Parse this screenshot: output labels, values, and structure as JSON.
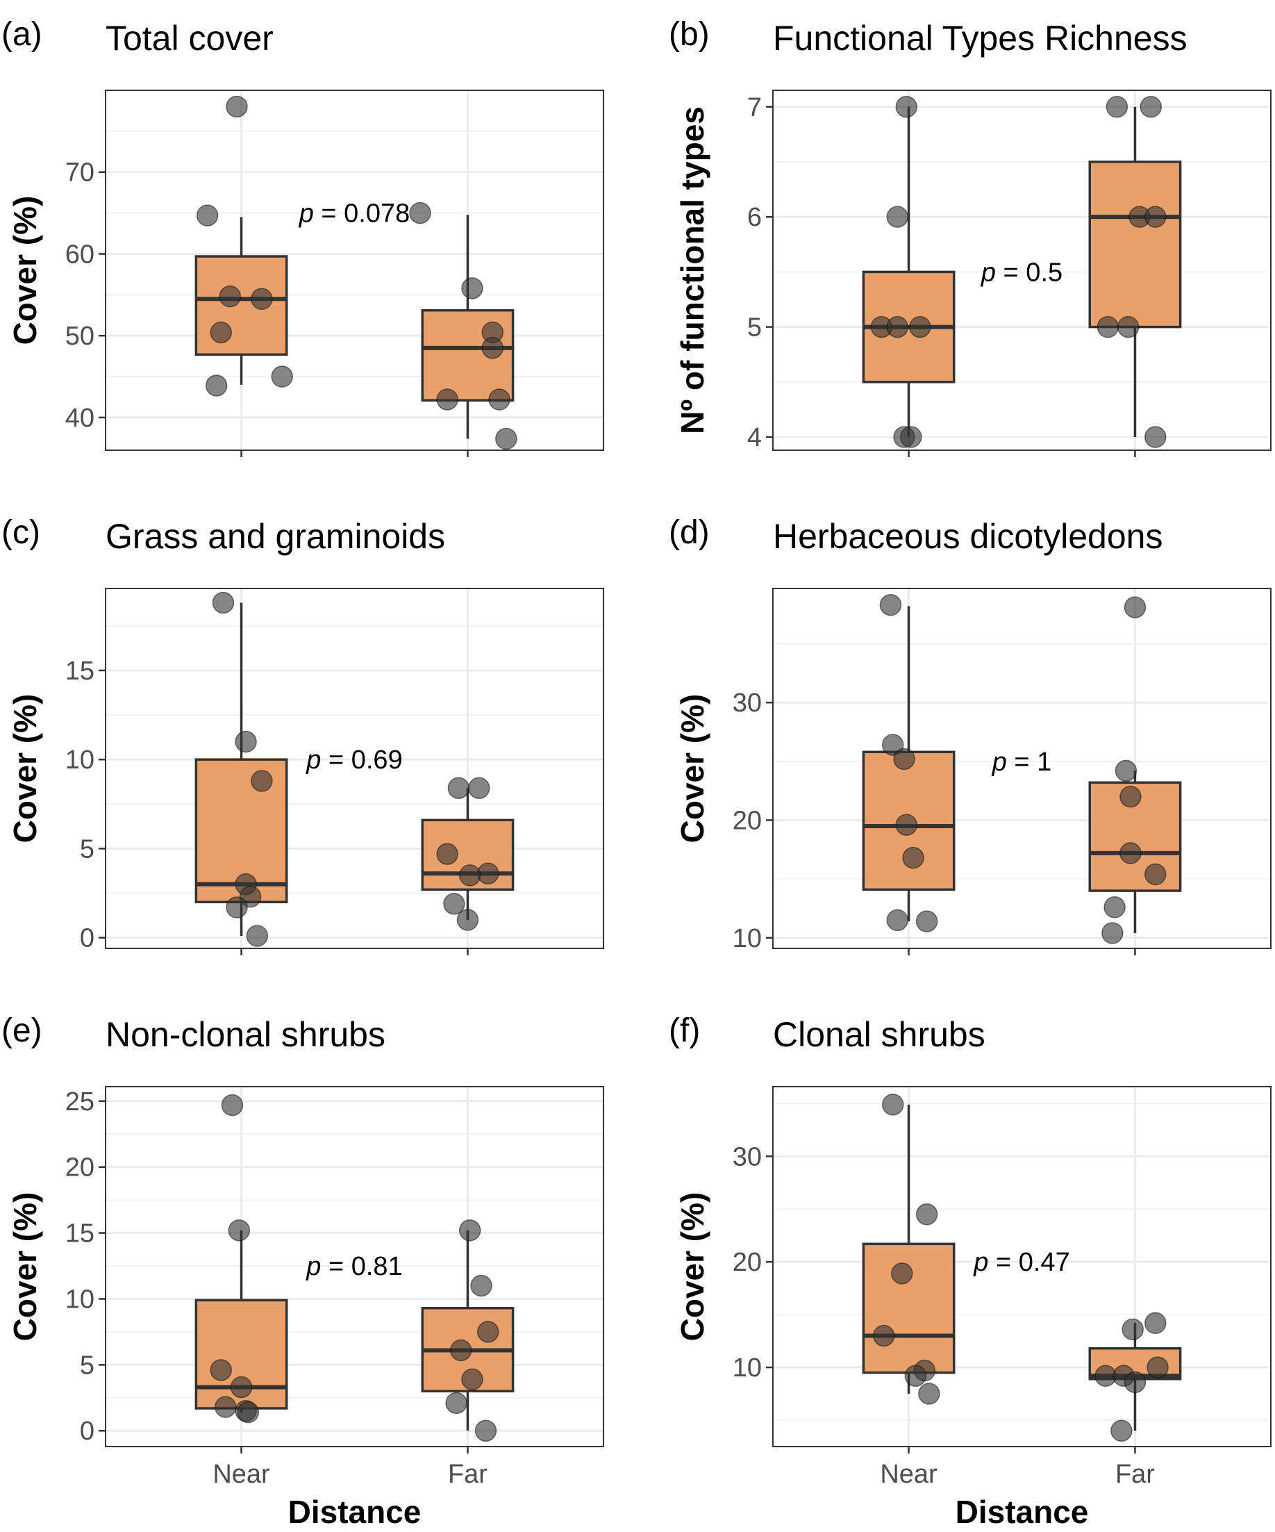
{
  "chart_data": [
    {
      "type": "box",
      "letter": "(a)",
      "title": "Total cover",
      "ylabel": "Cover (%)",
      "xlabel": "",
      "ylim": [
        36,
        80
      ],
      "yticks": [
        40,
        50,
        60,
        70
      ],
      "categories": [
        "Near",
        "Far"
      ],
      "boxes": [
        {
          "category": "Near",
          "q1": 47.7,
          "median": 54.5,
          "q3": 59.7,
          "whisker_low": 44,
          "whisker_high": 64.5,
          "points": [
            {
              "v": 78.0,
              "j": -0.02
            },
            {
              "v": 64.7,
              "j": -0.15
            },
            {
              "v": 54.8,
              "j": -0.05
            },
            {
              "v": 54.5,
              "j": 0.09
            },
            {
              "v": 50.4,
              "j": -0.09
            },
            {
              "v": 45.0,
              "j": 0.18
            },
            {
              "v": 43.9,
              "j": -0.11
            }
          ]
        },
        {
          "category": "Far",
          "q1": 42.1,
          "median": 48.5,
          "q3": 53.1,
          "whisker_low": 37.4,
          "whisker_high": 64.8,
          "points": [
            {
              "v": 65.0,
              "j": -0.21
            },
            {
              "v": 55.8,
              "j": 0.02
            },
            {
              "v": 50.4,
              "j": 0.11
            },
            {
              "v": 48.5,
              "j": 0.11
            },
            {
              "v": 42.2,
              "j": -0.09
            },
            {
              "v": 42.2,
              "j": 0.14
            },
            {
              "v": 37.4,
              "j": 0.17
            }
          ]
        }
      ],
      "p_value": {
        "prefix": "p",
        "text": " = 0.078",
        "x": 0.5,
        "y": 65
      }
    },
    {
      "type": "box",
      "letter": "(b)",
      "title": "Functional Types Richness",
      "ylabel": "Nº of functional types",
      "xlabel": "",
      "ylim": [
        3.88,
        7.15
      ],
      "yticks": [
        4,
        5,
        6,
        7
      ],
      "categories": [
        "Near",
        "Far"
      ],
      "boxes": [
        {
          "category": "Near",
          "q1": 4.5,
          "median": 5.0,
          "q3": 5.5,
          "whisker_low": 4,
          "whisker_high": 7,
          "points": [
            {
              "v": 7,
              "j": -0.01
            },
            {
              "v": 6,
              "j": -0.05
            },
            {
              "v": 5,
              "j": -0.12
            },
            {
              "v": 5,
              "j": -0.05
            },
            {
              "v": 5,
              "j": 0.05
            },
            {
              "v": 4,
              "j": -0.02
            },
            {
              "v": 4,
              "j": 0.01
            }
          ]
        },
        {
          "category": "Far",
          "q1": 5.0,
          "median": 6.0,
          "q3": 6.5,
          "whisker_low": 4,
          "whisker_high": 7,
          "points": [
            {
              "v": 7,
              "j": -0.08
            },
            {
              "v": 7,
              "j": 0.07
            },
            {
              "v": 6,
              "j": 0.02
            },
            {
              "v": 6,
              "j": 0.09
            },
            {
              "v": 5,
              "j": -0.12
            },
            {
              "v": 5,
              "j": -0.03
            },
            {
              "v": 4,
              "j": 0.09
            }
          ]
        }
      ],
      "p_value": {
        "prefix": "p",
        "text": " = 0.5",
        "x": 0.5,
        "y": 5.5
      }
    },
    {
      "type": "box",
      "letter": "(c)",
      "title": "Grass and graminoids",
      "ylabel": "Cover (%)",
      "xlabel": "",
      "ylim": [
        -0.6,
        19.6
      ],
      "yticks": [
        0,
        5,
        10,
        15
      ],
      "categories": [
        "Near",
        "Far"
      ],
      "boxes": [
        {
          "category": "Near",
          "q1": 2.0,
          "median": 3.0,
          "q3": 10.0,
          "whisker_low": 0.1,
          "whisker_high": 18.8,
          "points": [
            {
              "v": 18.8,
              "j": -0.08
            },
            {
              "v": 11.0,
              "j": 0.02
            },
            {
              "v": 8.8,
              "j": 0.09
            },
            {
              "v": 3.0,
              "j": 0.02
            },
            {
              "v": 2.3,
              "j": 0.04
            },
            {
              "v": 1.7,
              "j": -0.02
            },
            {
              "v": 0.1,
              "j": 0.07
            }
          ]
        },
        {
          "category": "Far",
          "q1": 2.7,
          "median": 3.6,
          "q3": 6.6,
          "whisker_low": 1.0,
          "whisker_high": 8.4,
          "points": [
            {
              "v": 8.4,
              "j": -0.04
            },
            {
              "v": 8.4,
              "j": 0.05
            },
            {
              "v": 4.7,
              "j": -0.09
            },
            {
              "v": 3.6,
              "j": 0.09
            },
            {
              "v": 3.5,
              "j": 0.01
            },
            {
              "v": 1.9,
              "j": -0.06
            },
            {
              "v": 1.0,
              "j": 0.0
            }
          ]
        }
      ],
      "p_value": {
        "prefix": "p",
        "text": " = 0.69",
        "x": 0.5,
        "y": 10
      }
    },
    {
      "type": "box",
      "letter": "(d)",
      "title": "Herbaceous dicotyledons",
      "ylabel": "Cover (%)",
      "xlabel": "",
      "ylim": [
        9.1,
        39.7
      ],
      "yticks": [
        10,
        20,
        30
      ],
      "categories": [
        "Near",
        "Far"
      ],
      "boxes": [
        {
          "category": "Near",
          "q1": 14.1,
          "median": 19.5,
          "q3": 25.8,
          "whisker_low": 11.4,
          "whisker_high": 38.2,
          "points": [
            {
              "v": 38.3,
              "j": -0.08
            },
            {
              "v": 26.4,
              "j": -0.07
            },
            {
              "v": 25.2,
              "j": -0.02
            },
            {
              "v": 19.6,
              "j": -0.01
            },
            {
              "v": 16.8,
              "j": 0.02
            },
            {
              "v": 11.5,
              "j": -0.05
            },
            {
              "v": 11.4,
              "j": 0.08
            }
          ]
        },
        {
          "category": "Far",
          "q1": 14.0,
          "median": 17.2,
          "q3": 23.2,
          "whisker_low": 10.4,
          "whisker_high": 24.2,
          "points": [
            {
              "v": 38.1,
              "j": 0.0
            },
            {
              "v": 24.2,
              "j": -0.04
            },
            {
              "v": 22.0,
              "j": -0.02
            },
            {
              "v": 17.2,
              "j": -0.02
            },
            {
              "v": 15.4,
              "j": 0.09
            },
            {
              "v": 12.6,
              "j": -0.09
            },
            {
              "v": 10.4,
              "j": -0.1
            }
          ]
        }
      ],
      "p_value": {
        "prefix": "p",
        "text": " = 1",
        "x": 0.5,
        "y": 25
      }
    },
    {
      "type": "box",
      "letter": "(e)",
      "title": "Non-clonal shrubs",
      "ylabel": "Cover (%)",
      "xlabel": "Distance",
      "ylim": [
        -1.2,
        26.1
      ],
      "yticks": [
        0,
        5,
        10,
        15,
        20,
        25
      ],
      "categories": [
        "Near",
        "Far"
      ],
      "boxes": [
        {
          "category": "Near",
          "q1": 1.7,
          "median": 3.3,
          "q3": 9.9,
          "whisker_low": 1.4,
          "whisker_high": 15.2,
          "points": [
            {
              "v": 24.7,
              "j": -0.04
            },
            {
              "v": 15.2,
              "j": -0.01
            },
            {
              "v": 4.6,
              "j": -0.09
            },
            {
              "v": 3.3,
              "j": 0.0
            },
            {
              "v": 1.8,
              "j": -0.07
            },
            {
              "v": 1.5,
              "j": 0.02
            },
            {
              "v": 1.4,
              "j": 0.03
            }
          ]
        },
        {
          "category": "Far",
          "q1": 3.0,
          "median": 6.1,
          "q3": 9.3,
          "whisker_low": 0.0,
          "whisker_high": 15.2,
          "points": [
            {
              "v": 15.2,
              "j": 0.01
            },
            {
              "v": 11.0,
              "j": 0.06
            },
            {
              "v": 7.5,
              "j": 0.09
            },
            {
              "v": 6.1,
              "j": -0.03
            },
            {
              "v": 3.9,
              "j": 0.02
            },
            {
              "v": 2.1,
              "j": -0.05
            },
            {
              "v": 0.0,
              "j": 0.08
            }
          ]
        }
      ],
      "p_value": {
        "prefix": "p",
        "text": " = 0.81",
        "x": 0.5,
        "y": 12.5
      }
    },
    {
      "type": "box",
      "letter": "(f)",
      "title": "Clonal shrubs",
      "ylabel": "Cover (%)",
      "xlabel": "Distance",
      "ylim": [
        2.5,
        36.6
      ],
      "yticks": [
        10,
        20,
        30
      ],
      "categories": [
        "Near",
        "Far"
      ],
      "boxes": [
        {
          "category": "Near",
          "q1": 9.5,
          "median": 13.0,
          "q3": 21.7,
          "whisker_low": 7.5,
          "whisker_high": 34.9,
          "points": [
            {
              "v": 34.9,
              "j": -0.07
            },
            {
              "v": 24.5,
              "j": 0.08
            },
            {
              "v": 18.9,
              "j": -0.03
            },
            {
              "v": 13.0,
              "j": -0.11
            },
            {
              "v": 9.7,
              "j": 0.07
            },
            {
              "v": 9.2,
              "j": 0.03
            },
            {
              "v": 7.5,
              "j": 0.09
            }
          ]
        },
        {
          "category": "Far",
          "q1": 8.9,
          "median": 9.2,
          "q3": 11.8,
          "whisker_low": 4.0,
          "whisker_high": 14.2,
          "points": [
            {
              "v": 14.2,
              "j": 0.09
            },
            {
              "v": 13.6,
              "j": -0.01
            },
            {
              "v": 10.0,
              "j": 0.1
            },
            {
              "v": 9.2,
              "j": -0.13
            },
            {
              "v": 9.2,
              "j": -0.05
            },
            {
              "v": 8.6,
              "j": 0.0
            },
            {
              "v": 4.0,
              "j": -0.06
            }
          ]
        }
      ],
      "p_value": {
        "prefix": "p",
        "text": " = 0.47",
        "x": 0.5,
        "y": 20
      }
    }
  ],
  "colors": {
    "box_fill": "#e9a06b",
    "box_stroke": "#333333",
    "point_fill": "#333333",
    "grid_major": "#ebebeb",
    "grid_minor": "#f2f2f2",
    "panel_border": "#333333"
  }
}
